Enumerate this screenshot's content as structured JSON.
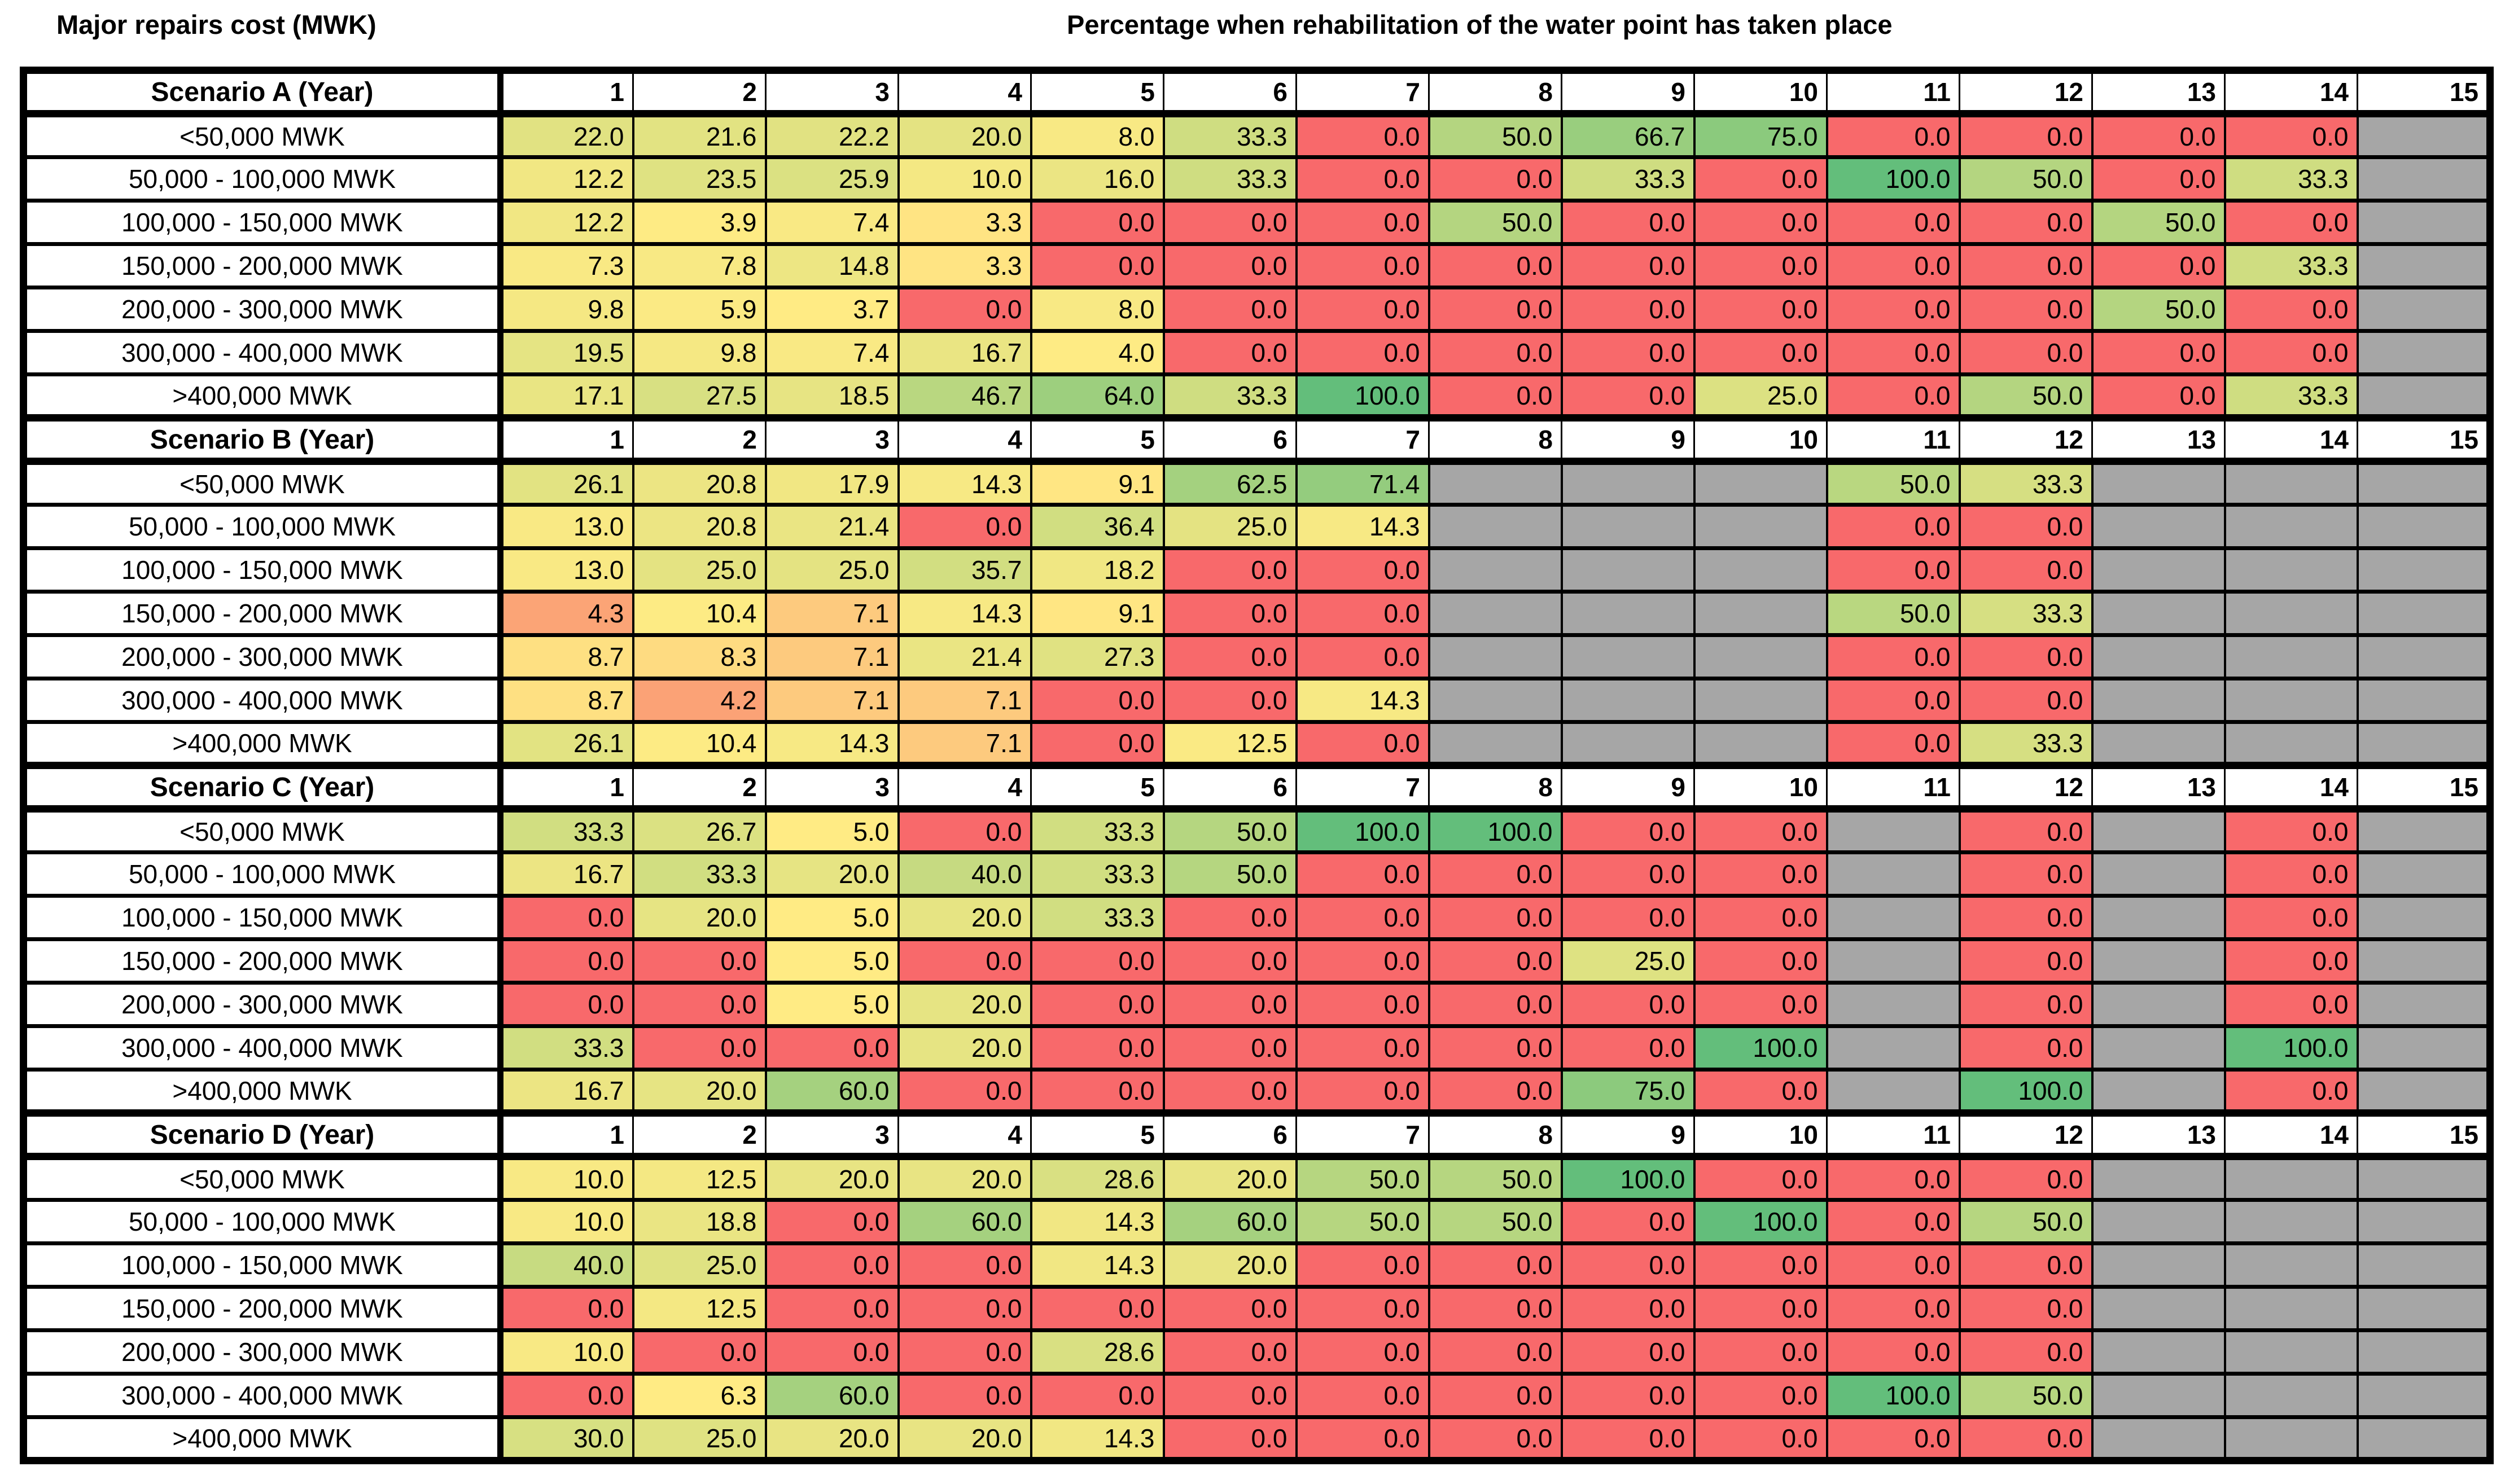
{
  "chart_data": {
    "type": "heatmap",
    "title_left": "Major repairs cost (MWK)",
    "title_right": "Percentage when rehabilitation of the water point has taken place",
    "columns": [
      1,
      2,
      3,
      4,
      5,
      6,
      7,
      8,
      9,
      10,
      11,
      12,
      13,
      14,
      15
    ],
    "cost_bands": [
      "<50,000 MWK",
      "50,000 - 100,000 MWK",
      "100,000 - 150,000 MWK",
      "150,000 - 200,000 MWK",
      "200,000 - 300,000 MWK",
      "300,000 - 400,000 MWK",
      ">400,000 MWK"
    ],
    "legend_note": "cell color scale: red=0, yellow=scenario midpoint, green=100, gray=no data",
    "colors": {
      "low": "#F8696B",
      "mid": "#FFEB84",
      "high": "#63BE7B",
      "empty": "#A6A6A6",
      "border": "#000000",
      "background": "#FFFFFF",
      "value_min": 0,
      "value_max": 100
    },
    "scenarios": [
      {
        "label": "Scenario A (Year)",
        "midpoint": 3.5,
        "rows": [
          [
            22.0,
            21.6,
            22.2,
            20.0,
            8.0,
            33.3,
            0.0,
            50.0,
            66.7,
            75.0,
            0.0,
            0.0,
            0.0,
            0.0,
            null
          ],
          [
            12.2,
            23.5,
            25.9,
            10.0,
            16.0,
            33.3,
            0.0,
            0.0,
            33.3,
            0.0,
            100.0,
            50.0,
            0.0,
            33.3,
            null
          ],
          [
            12.2,
            3.9,
            7.4,
            3.3,
            0.0,
            0.0,
            0.0,
            50.0,
            0.0,
            0.0,
            0.0,
            0.0,
            50.0,
            0.0,
            null
          ],
          [
            7.3,
            7.8,
            14.8,
            3.3,
            0.0,
            0.0,
            0.0,
            0.0,
            0.0,
            0.0,
            0.0,
            0.0,
            0.0,
            33.3,
            null
          ],
          [
            9.8,
            5.9,
            3.7,
            0.0,
            8.0,
            0.0,
            0.0,
            0.0,
            0.0,
            0.0,
            0.0,
            0.0,
            50.0,
            0.0,
            null
          ],
          [
            19.5,
            9.8,
            7.4,
            16.7,
            4.0,
            0.0,
            0.0,
            0.0,
            0.0,
            0.0,
            0.0,
            0.0,
            0.0,
            0.0,
            null
          ],
          [
            17.1,
            27.5,
            18.5,
            46.7,
            64.0,
            33.3,
            100.0,
            0.0,
            0.0,
            25.0,
            0.0,
            50.0,
            0.0,
            33.3,
            null
          ]
        ]
      },
      {
        "label": "Scenario B (Year)",
        "midpoint": 9.5,
        "rows": [
          [
            26.1,
            20.8,
            17.9,
            14.3,
            9.1,
            62.5,
            71.4,
            null,
            null,
            null,
            50.0,
            33.3,
            null,
            null,
            null
          ],
          [
            13.0,
            20.8,
            21.4,
            0.0,
            36.4,
            25.0,
            14.3,
            null,
            null,
            null,
            0.0,
            0.0,
            null,
            null,
            null
          ],
          [
            13.0,
            25.0,
            25.0,
            35.7,
            18.2,
            0.0,
            0.0,
            null,
            null,
            null,
            0.0,
            0.0,
            null,
            null,
            null
          ],
          [
            4.3,
            10.4,
            7.1,
            14.3,
            9.1,
            0.0,
            0.0,
            null,
            null,
            null,
            50.0,
            33.3,
            null,
            null,
            null
          ],
          [
            8.7,
            8.3,
            7.1,
            21.4,
            27.3,
            0.0,
            0.0,
            null,
            null,
            null,
            0.0,
            0.0,
            null,
            null,
            null
          ],
          [
            8.7,
            4.2,
            7.1,
            7.1,
            0.0,
            0.0,
            14.3,
            null,
            null,
            null,
            0.0,
            0.0,
            null,
            null,
            null
          ],
          [
            26.1,
            10.4,
            14.3,
            7.1,
            0.0,
            12.5,
            0.0,
            null,
            null,
            null,
            0.0,
            33.3,
            null,
            null,
            null
          ]
        ]
      },
      {
        "label": "Scenario C (Year)",
        "midpoint": 5.0,
        "rows": [
          [
            33.3,
            26.7,
            5.0,
            0.0,
            33.3,
            50.0,
            100.0,
            100.0,
            0.0,
            0.0,
            null,
            0.0,
            null,
            0.0,
            null
          ],
          [
            16.7,
            33.3,
            20.0,
            40.0,
            33.3,
            50.0,
            0.0,
            0.0,
            0.0,
            0.0,
            null,
            0.0,
            null,
            0.0,
            null
          ],
          [
            0.0,
            20.0,
            5.0,
            20.0,
            33.3,
            0.0,
            0.0,
            0.0,
            0.0,
            0.0,
            null,
            0.0,
            null,
            0.0,
            null
          ],
          [
            0.0,
            0.0,
            5.0,
            0.0,
            0.0,
            0.0,
            0.0,
            0.0,
            25.0,
            0.0,
            null,
            0.0,
            null,
            0.0,
            null
          ],
          [
            0.0,
            0.0,
            5.0,
            20.0,
            0.0,
            0.0,
            0.0,
            0.0,
            0.0,
            0.0,
            null,
            0.0,
            null,
            0.0,
            null
          ],
          [
            33.3,
            0.0,
            0.0,
            20.0,
            0.0,
            0.0,
            0.0,
            0.0,
            0.0,
            100.0,
            null,
            0.0,
            null,
            100.0,
            null
          ],
          [
            16.7,
            20.0,
            60.0,
            0.0,
            0.0,
            0.0,
            0.0,
            0.0,
            75.0,
            0.0,
            null,
            100.0,
            null,
            0.0,
            null
          ]
        ]
      },
      {
        "label": "Scenario D (Year)",
        "midpoint": 6.0,
        "rows": [
          [
            10.0,
            12.5,
            20.0,
            20.0,
            28.6,
            20.0,
            50.0,
            50.0,
            100.0,
            0.0,
            0.0,
            0.0,
            null,
            null,
            null
          ],
          [
            10.0,
            18.8,
            0.0,
            60.0,
            14.3,
            60.0,
            50.0,
            50.0,
            0.0,
            100.0,
            0.0,
            50.0,
            null,
            null,
            null
          ],
          [
            40.0,
            25.0,
            0.0,
            0.0,
            14.3,
            20.0,
            0.0,
            0.0,
            0.0,
            0.0,
            0.0,
            0.0,
            null,
            null,
            null
          ],
          [
            0.0,
            12.5,
            0.0,
            0.0,
            0.0,
            0.0,
            0.0,
            0.0,
            0.0,
            0.0,
            0.0,
            0.0,
            null,
            null,
            null
          ],
          [
            10.0,
            0.0,
            0.0,
            0.0,
            28.6,
            0.0,
            0.0,
            0.0,
            0.0,
            0.0,
            0.0,
            0.0,
            null,
            null,
            null
          ],
          [
            0.0,
            6.3,
            60.0,
            0.0,
            0.0,
            0.0,
            0.0,
            0.0,
            0.0,
            0.0,
            100.0,
            50.0,
            null,
            null,
            null
          ],
          [
            30.0,
            25.0,
            20.0,
            20.0,
            14.3,
            0.0,
            0.0,
            0.0,
            0.0,
            0.0,
            0.0,
            0.0,
            null,
            null,
            null
          ]
        ]
      }
    ]
  }
}
